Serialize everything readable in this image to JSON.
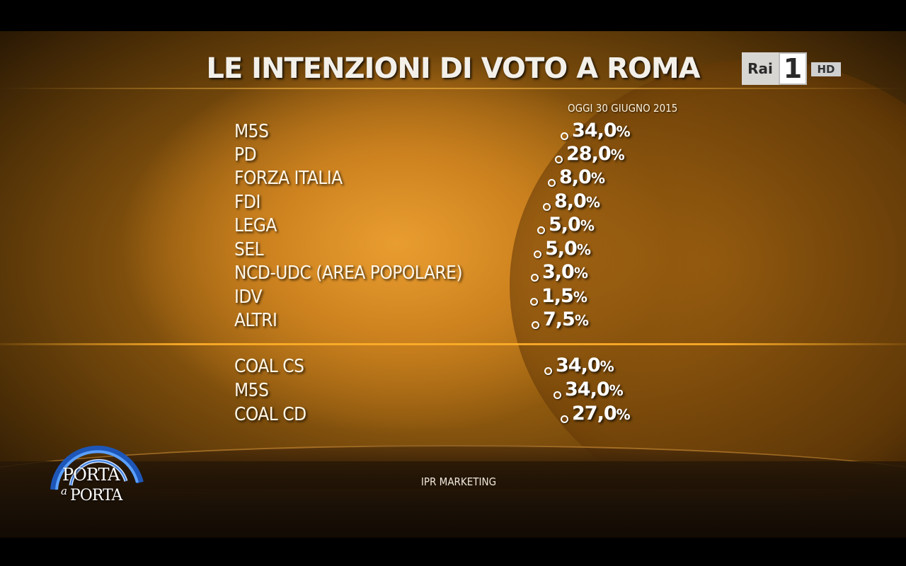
{
  "title": "LE INTENZIONI DI VOTO A ROMA",
  "date_label": "OGGI 30 GIUGNO 2015",
  "parties": [
    {
      "label": "M5S",
      "value": "34,0",
      "unit": "%"
    },
    {
      "label": "PD",
      "value": "28,0",
      "unit": "%"
    },
    {
      "label": "FORZA ITALIA",
      "value": "8,0",
      "unit": "%"
    },
    {
      "label": "FDI",
      "value": "8,0",
      "unit": "%"
    },
    {
      "label": "LEGA",
      "value": "5,0",
      "unit": "%"
    },
    {
      "label": "SEL",
      "value": "5,0",
      "unit": "%"
    },
    {
      "label": "NCD-UDC (AREA POPOLARE)",
      "value": "3,0",
      "unit": "%"
    },
    {
      "label": "IDV",
      "value": "1,5",
      "unit": "%"
    },
    {
      "label": "ALTRI",
      "value": "7,5",
      "unit": "%"
    }
  ],
  "coalitions": [
    {
      "label": "COAL CS",
      "value": "34,0",
      "unit": "%"
    },
    {
      "label": "M5S",
      "value": "34,0",
      "unit": "%"
    },
    {
      "label": "COAL CD",
      "value": "27,0",
      "unit": "%"
    }
  ],
  "source": "IPR MARKETING",
  "channel_logo": {
    "brand": "Rai",
    "number": "1",
    "hd": "HD"
  },
  "show_logo": {
    "line1": "PORTA",
    "connector": "a",
    "line2": "PORTA"
  },
  "colors": {
    "background": "#b87512",
    "text": "#ffffff",
    "divider": "#ffaf28",
    "logo_arc": "#3d7fe0"
  }
}
